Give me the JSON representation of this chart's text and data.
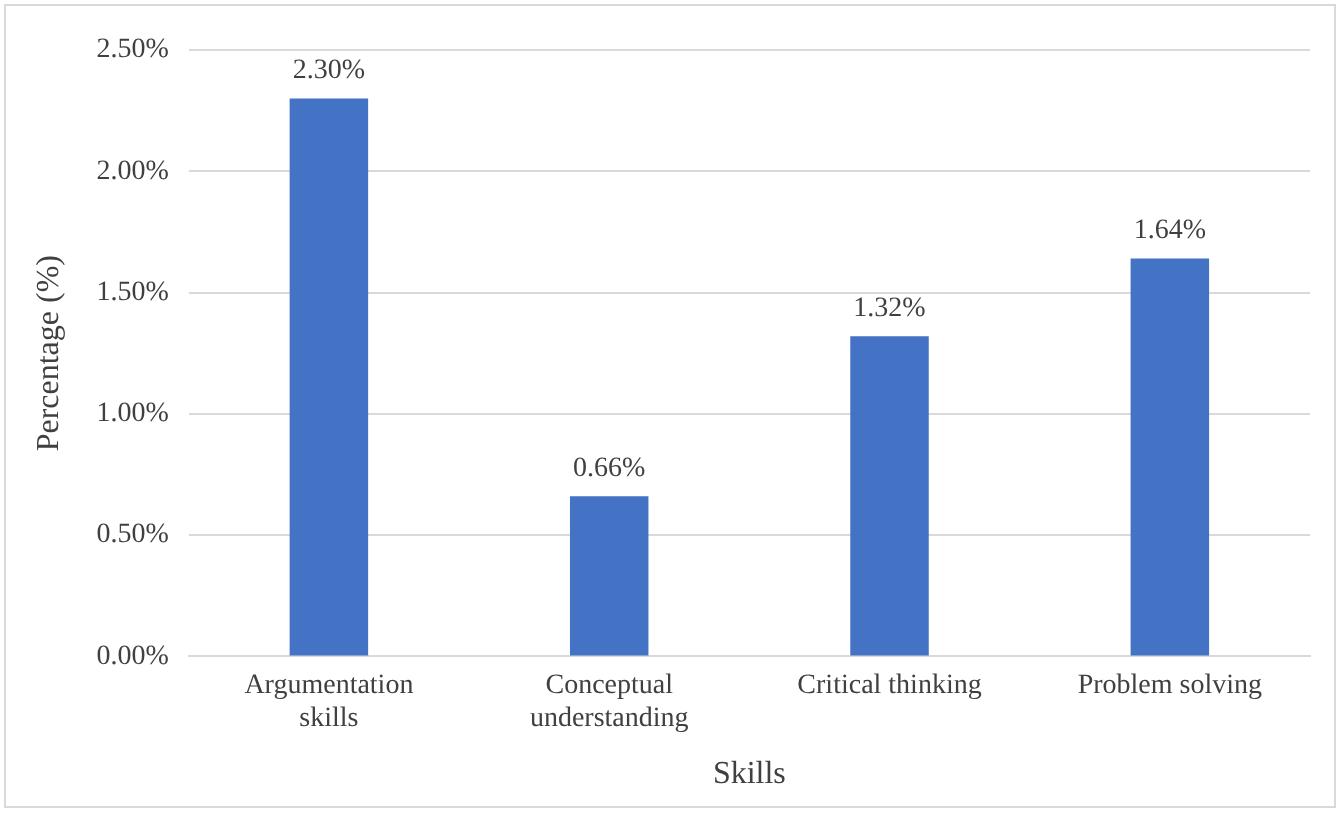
{
  "chart_data": {
    "type": "bar",
    "xlabel": "Skills",
    "ylabel": "Percentage (%)",
    "categories": [
      "Argumentation skills",
      "Conceptual understanding",
      "Critical thinking",
      "Problem solving"
    ],
    "values": [
      2.3,
      0.66,
      1.32,
      1.64
    ],
    "value_labels": [
      "2.30%",
      "0.66%",
      "1.32%",
      "1.64%"
    ],
    "color": "#4472c4",
    "ylim": [
      0,
      2.5
    ],
    "yticks": [
      {
        "value": 0,
        "label": "0.00%"
      },
      {
        "value": 0.5,
        "label": "0.50%"
      },
      {
        "value": 1,
        "label": "1.00%"
      },
      {
        "value": 1.5,
        "label": "1.50%"
      },
      {
        "value": 2,
        "label": "2.00%"
      },
      {
        "value": 2.5,
        "label": "2.50%"
      }
    ],
    "grid": "y",
    "legend": false
  }
}
